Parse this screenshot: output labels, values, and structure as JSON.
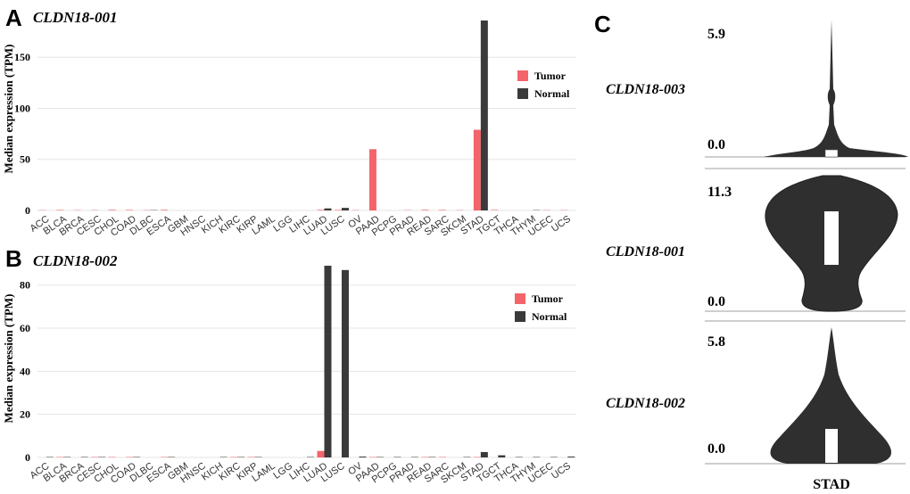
{
  "panels": {
    "A": {
      "letter": "A",
      "title": "CLDN18-001"
    },
    "B": {
      "letter": "B",
      "title": "CLDN18-002"
    },
    "C": {
      "letter": "C"
    }
  },
  "colors": {
    "tumor": "#F4646A",
    "normal": "#3A3A3A",
    "grid": "#E6E6E6",
    "violin": "#2F2F2F"
  },
  "chart_data": [
    {
      "id": "A",
      "type": "bar",
      "title": "CLDN18-001",
      "ylabel": "Median expression (TPM)",
      "xlabel": "",
      "ylim": [
        0,
        186
      ],
      "yticks": [
        0,
        50,
        100,
        150
      ],
      "legend_position": "top-right",
      "categories": [
        "ACC",
        "BLCA",
        "BRCA",
        "CESC",
        "CHOL",
        "COAD",
        "DLBC",
        "ESCA",
        "GBM",
        "HNSC",
        "KICH",
        "KIRC",
        "KIRP",
        "LAML",
        "LGG",
        "LIHC",
        "LUAD",
        "LUSC",
        "OV",
        "PAAD",
        "PCPG",
        "PRAD",
        "READ",
        "SARC",
        "SKCM",
        "STAD",
        "TGCT",
        "THCA",
        "THYM",
        "UCEC",
        "UCS"
      ],
      "series": [
        {
          "name": "Tumor",
          "values": [
            0.3,
            0.5,
            0.3,
            0.3,
            0.6,
            0.5,
            0.3,
            0.6,
            0,
            0,
            0,
            0,
            0,
            0,
            0,
            0,
            0.6,
            0.5,
            0.3,
            60,
            0,
            0.3,
            0.6,
            0.5,
            0.3,
            79,
            0.5,
            0,
            0,
            0.3,
            0.3
          ]
        },
        {
          "name": "Normal",
          "values": [
            0,
            0,
            0,
            0,
            0,
            0,
            0.3,
            0,
            0,
            0,
            0,
            0,
            0,
            0,
            0,
            0,
            2,
            2.5,
            0,
            0,
            0,
            0,
            0,
            0,
            0,
            186,
            0,
            0,
            0.3,
            0,
            0
          ]
        }
      ]
    },
    {
      "id": "B",
      "type": "bar",
      "title": "CLDN18-002",
      "ylabel": "Median expression (TPM)",
      "xlabel": "",
      "ylim": [
        0,
        89
      ],
      "yticks": [
        0,
        20,
        40,
        60,
        80
      ],
      "legend_position": "top-right",
      "categories": [
        "ACC",
        "BLCA",
        "BRCA",
        "CESC",
        "CHOL",
        "COAD",
        "DLBC",
        "ESCA",
        "GBM",
        "HNSC",
        "KICH",
        "KIRC",
        "KIRP",
        "LAML",
        "LGG",
        "LIHC",
        "LUAD",
        "LUSC",
        "OV",
        "PAAD",
        "PCPG",
        "PRAD",
        "READ",
        "SARC",
        "SKCM",
        "STAD",
        "TGCT",
        "THCA",
        "THYM",
        "UCEC",
        "UCS"
      ],
      "series": [
        {
          "name": "Tumor",
          "values": [
            0,
            0.2,
            0,
            0.2,
            0.2,
            0.2,
            0,
            0.2,
            0,
            0,
            0,
            0.2,
            0.2,
            0,
            0,
            0,
            3,
            0,
            0,
            0.2,
            0,
            0,
            0.2,
            0.2,
            0,
            0.2,
            0,
            0,
            0,
            0,
            0
          ]
        },
        {
          "name": "Normal",
          "values": [
            0.2,
            0.2,
            0.2,
            0.2,
            0,
            0.2,
            0,
            0.2,
            0,
            0,
            0.2,
            0.2,
            0.2,
            0,
            0,
            0.2,
            89,
            87,
            0.4,
            0.2,
            0.2,
            0.2,
            0.2,
            0,
            0.2,
            2.5,
            1,
            0.2,
            0.2,
            0.2,
            0.4
          ]
        }
      ]
    },
    {
      "id": "C",
      "type": "violin",
      "category": "STAD",
      "violins": [
        {
          "label": "CLDN18-003",
          "min": 0.0,
          "max": 5.9,
          "min_label": "0.0",
          "max_label": "5.9"
        },
        {
          "label": "CLDN18-001",
          "min": 0.0,
          "max": 11.3,
          "min_label": "0.0",
          "max_label": "11.3"
        },
        {
          "label": "CLDN18-002",
          "min": 0.0,
          "max": 5.8,
          "min_label": "0.0",
          "max_label": "5.8"
        }
      ]
    }
  ]
}
